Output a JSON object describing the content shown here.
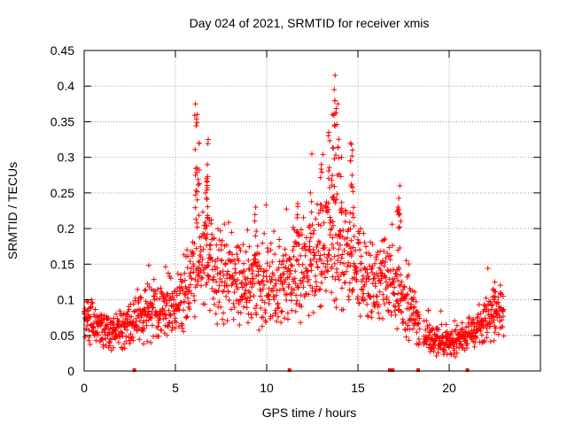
{
  "chart_data": {
    "type": "scatter",
    "title": "Day 024 of 2021, SRMTID for receiver xmis",
    "xlabel": "GPS time / hours",
    "ylabel": "SRMTID / TECUs",
    "xlim": [
      0,
      25
    ],
    "ylim": [
      0,
      0.45
    ],
    "xticks": [
      0,
      5,
      10,
      15,
      20
    ],
    "xtick_labels": [
      "0",
      "5",
      "10",
      "15",
      "20"
    ],
    "yticks": [
      0,
      0.05,
      0.1,
      0.15,
      0.2,
      0.25,
      0.3,
      0.35,
      0.4,
      0.45
    ],
    "ytick_labels": [
      "0",
      "0.05",
      "0.1",
      "0.15",
      "0.2",
      "0.25",
      "0.3",
      "0.35",
      "0.4",
      "0.45"
    ],
    "grid": true,
    "marker": "+",
    "color": "#ff0000",
    "trend": [
      [
        0.0,
        0.075
      ],
      [
        0.5,
        0.065
      ],
      [
        1.0,
        0.06
      ],
      [
        1.5,
        0.055
      ],
      [
        2.0,
        0.06
      ],
      [
        2.5,
        0.07
      ],
      [
        3.0,
        0.08
      ],
      [
        3.5,
        0.085
      ],
      [
        4.0,
        0.085
      ],
      [
        4.5,
        0.08
      ],
      [
        5.0,
        0.085
      ],
      [
        5.5,
        0.12
      ],
      [
        6.0,
        0.15
      ],
      [
        6.5,
        0.15
      ],
      [
        7.0,
        0.15
      ],
      [
        7.5,
        0.14
      ],
      [
        8.0,
        0.13
      ],
      [
        8.5,
        0.125
      ],
      [
        9.0,
        0.125
      ],
      [
        9.5,
        0.125
      ],
      [
        10.0,
        0.12
      ],
      [
        10.5,
        0.12
      ],
      [
        11.0,
        0.13
      ],
      [
        11.5,
        0.14
      ],
      [
        12.0,
        0.14
      ],
      [
        12.5,
        0.15
      ],
      [
        13.0,
        0.16
      ],
      [
        13.5,
        0.17
      ],
      [
        14.0,
        0.17
      ],
      [
        14.5,
        0.16
      ],
      [
        15.0,
        0.14
      ],
      [
        15.5,
        0.13
      ],
      [
        16.0,
        0.12
      ],
      [
        16.5,
        0.13
      ],
      [
        17.0,
        0.12
      ],
      [
        17.5,
        0.1
      ],
      [
        18.0,
        0.08
      ],
      [
        18.5,
        0.05
      ],
      [
        19.0,
        0.045
      ],
      [
        19.5,
        0.045
      ],
      [
        20.0,
        0.04
      ],
      [
        20.5,
        0.045
      ],
      [
        21.0,
        0.05
      ],
      [
        21.5,
        0.06
      ],
      [
        22.0,
        0.07
      ],
      [
        22.5,
        0.08
      ],
      [
        23.0,
        0.085
      ]
    ],
    "gaps": [
      [
        18.4,
        18.6
      ]
    ],
    "peaks": [
      {
        "x": 6.1,
        "y": 0.375
      },
      {
        "x": 6.2,
        "y": 0.36
      },
      {
        "x": 6.3,
        "y": 0.32
      },
      {
        "x": 6.8,
        "y": 0.325
      },
      {
        "x": 6.75,
        "y": 0.29
      },
      {
        "x": 6.7,
        "y": 0.27
      },
      {
        "x": 9.4,
        "y": 0.23
      },
      {
        "x": 11.7,
        "y": 0.235
      },
      {
        "x": 12.4,
        "y": 0.25
      },
      {
        "x": 13.0,
        "y": 0.29
      },
      {
        "x": 13.4,
        "y": 0.335
      },
      {
        "x": 13.6,
        "y": 0.36
      },
      {
        "x": 13.7,
        "y": 0.395
      },
      {
        "x": 13.75,
        "y": 0.415
      },
      {
        "x": 13.9,
        "y": 0.375
      },
      {
        "x": 14.1,
        "y": 0.3
      },
      {
        "x": 14.6,
        "y": 0.32
      },
      {
        "x": 14.7,
        "y": 0.31
      },
      {
        "x": 17.3,
        "y": 0.26
      },
      {
        "x": 17.2,
        "y": 0.23
      },
      {
        "x": 22.5,
        "y": 0.125
      }
    ],
    "bottom_markers": [
      2.75,
      11.25,
      16.75,
      16.9,
      18.3,
      21.0
    ]
  }
}
